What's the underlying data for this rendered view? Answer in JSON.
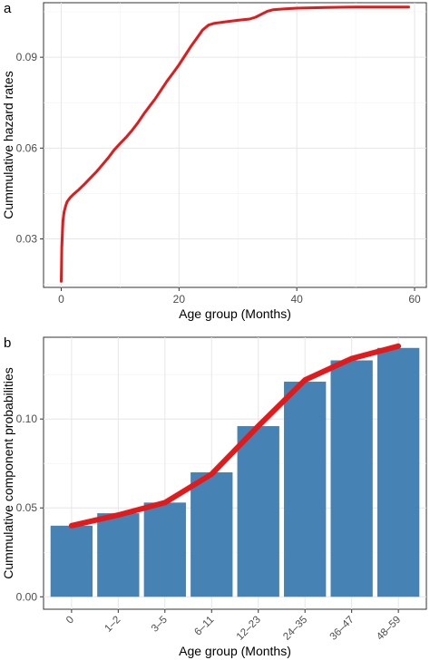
{
  "chart_data": [
    {
      "panel_label": "a",
      "type": "line",
      "xlabel": "Age group (Months)",
      "ylabel": "Cummulative hazard rates",
      "xlim": [
        -3,
        62
      ],
      "ylim": [
        0.014,
        0.108
      ],
      "x_ticks": [
        0,
        20,
        40,
        60
      ],
      "y_ticks": [
        0.03,
        0.06,
        0.09
      ],
      "y_tick_labels": [
        "0.03",
        "0.06",
        "0.09"
      ],
      "grid": true,
      "line_color": "#e31a1c",
      "x": [
        0,
        0.05,
        0.1,
        0.2,
        0.3,
        0.5,
        0.8,
        1,
        1.5,
        2,
        3,
        4,
        5,
        6,
        7,
        8,
        9,
        10,
        11,
        12,
        13,
        14,
        15,
        16,
        17,
        18,
        19,
        20,
        21,
        22,
        23,
        24,
        25,
        26,
        28,
        30,
        32,
        33,
        34,
        35,
        36,
        38,
        40,
        45,
        50,
        55,
        59
      ],
      "y": [
        0.016,
        0.021,
        0.027,
        0.032,
        0.036,
        0.039,
        0.0412,
        0.0423,
        0.0436,
        0.0446,
        0.0463,
        0.0482,
        0.0502,
        0.0522,
        0.0545,
        0.0568,
        0.0594,
        0.0615,
        0.0635,
        0.0658,
        0.0683,
        0.0712,
        0.0738,
        0.0764,
        0.0793,
        0.0822,
        0.0848,
        0.0875,
        0.0905,
        0.0935,
        0.0962,
        0.099,
        0.1006,
        0.1012,
        0.1017,
        0.1022,
        0.1026,
        0.1032,
        0.1042,
        0.1052,
        0.1057,
        0.106,
        0.1062,
        0.1064,
        0.1066,
        0.1066,
        0.1066
      ]
    },
    {
      "panel_label": "b",
      "type": "bar",
      "xlabel": "Age group (Months)",
      "ylabel": "Cummulative component probabilities",
      "categories": [
        "0",
        "1–2",
        "3–5",
        "6–11",
        "12–23",
        "24–35",
        "36–47",
        "48–59"
      ],
      "values": [
        0.04,
        0.047,
        0.053,
        0.07,
        0.096,
        0.121,
        0.133,
        0.14
      ],
      "line_values": [
        0.04,
        0.046,
        0.053,
        0.069,
        0.096,
        0.122,
        0.134,
        0.141
      ],
      "ylim": [
        -0.007,
        0.146
      ],
      "y_ticks": [
        0,
        0.05,
        0.1
      ],
      "y_tick_labels": [
        "0.00",
        "0.05",
        "0.10"
      ],
      "grid": true,
      "bar_color": "#4682b4",
      "line_color": "#e31a1c"
    }
  ]
}
